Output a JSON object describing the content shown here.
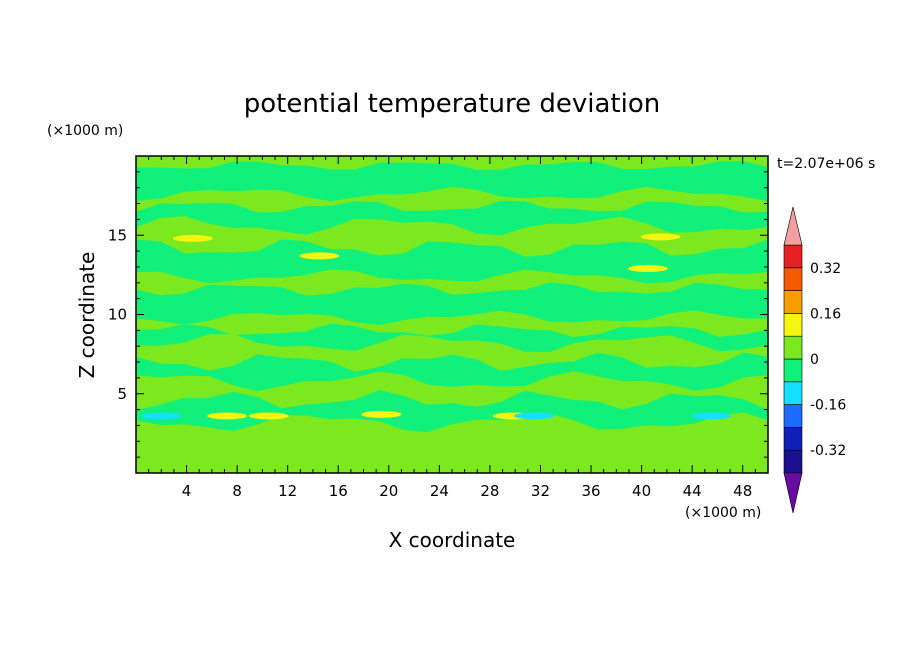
{
  "chart_data": {
    "type": "heatmap",
    "title": "potential temperature deviation",
    "xlabel": "X coordinate",
    "ylabel": "Z coordinate",
    "x_unit_label": "(×1000 m)",
    "y_unit_label": "(×1000 m)",
    "time_label": "t=2.07e+06 s",
    "xlim": [
      0,
      50
    ],
    "ylim": [
      0,
      20
    ],
    "x_ticks": [
      4,
      8,
      12,
      16,
      20,
      24,
      28,
      32,
      36,
      40,
      44,
      48
    ],
    "y_ticks": [
      5,
      10,
      15
    ],
    "colorbar": {
      "levels": [
        -0.4,
        -0.32,
        -0.24,
        -0.16,
        -0.08,
        0,
        0.08,
        0.16,
        0.24,
        0.32,
        0.4
      ],
      "colors": [
        "#1a1090",
        "#0f1fb8",
        "#1e6cff",
        "#14e0ff",
        "#10f07a",
        "#7ce81e",
        "#f5f510",
        "#f5a000",
        "#f55a00",
        "#e82020"
      ],
      "under_color": "#6a0aa0",
      "over_color": "#f5a0a0",
      "tick_labels": [
        "0.32",
        "0.16",
        "0",
        "-0.16",
        "-0.32"
      ],
      "tick_values": [
        0.32,
        0.16,
        0,
        -0.16,
        -0.32
      ]
    },
    "background_color": "#10f07a",
    "bands": [
      {
        "x": [
          0,
          50
        ],
        "y": [
          19.4,
          20
        ],
        "value": 0.04
      },
      {
        "x": [
          0,
          50
        ],
        "y": [
          16.8,
          17.6
        ],
        "value": 0.04
      },
      {
        "x": [
          0,
          50
        ],
        "y": [
          14.2,
          15.6
        ],
        "value": 0.04
      },
      {
        "x": [
          0,
          50
        ],
        "y": [
          11.6,
          12.4
        ],
        "value": 0.04
      },
      {
        "x": [
          0,
          50
        ],
        "y": [
          9.0,
          9.8
        ],
        "value": 0.04
      },
      {
        "x": [
          0,
          50
        ],
        "y": [
          7.0,
          8.2
        ],
        "value": 0.04
      },
      {
        "x": [
          0,
          50
        ],
        "y": [
          4.6,
          5.8
        ],
        "value": 0.04
      },
      {
        "x": [
          0,
          50
        ],
        "y": [
          0,
          3.2
        ],
        "value": 0.04
      }
    ],
    "blobs": [
      {
        "x": 4.5,
        "y": 14.8,
        "value": 0.12
      },
      {
        "x": 41.5,
        "y": 14.9,
        "value": 0.12
      },
      {
        "x": 14.5,
        "y": 13.7,
        "value": 0.12
      },
      {
        "x": 40.5,
        "y": 12.9,
        "value": 0.12
      },
      {
        "x": 7.2,
        "y": 3.6,
        "value": 0.12
      },
      {
        "x": 10.5,
        "y": 3.6,
        "value": 0.12
      },
      {
        "x": 19.4,
        "y": 3.7,
        "value": 0.12
      },
      {
        "x": 29.8,
        "y": 3.6,
        "value": 0.12
      },
      {
        "x": 2.0,
        "y": 3.6,
        "value": -0.12
      },
      {
        "x": 31.5,
        "y": 3.6,
        "value": -0.12
      },
      {
        "x": 45.5,
        "y": 3.6,
        "value": -0.12
      }
    ]
  }
}
